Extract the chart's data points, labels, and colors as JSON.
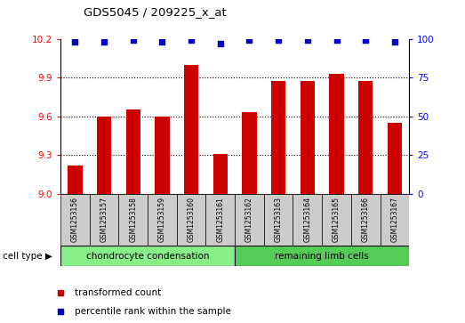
{
  "title": "GDS5045 / 209225_x_at",
  "samples": [
    "GSM1253156",
    "GSM1253157",
    "GSM1253158",
    "GSM1253159",
    "GSM1253160",
    "GSM1253161",
    "GSM1253162",
    "GSM1253163",
    "GSM1253164",
    "GSM1253165",
    "GSM1253166",
    "GSM1253167"
  ],
  "transformed_count": [
    9.22,
    9.6,
    9.65,
    9.6,
    10.0,
    9.31,
    9.63,
    9.87,
    9.87,
    9.93,
    9.87,
    9.55
  ],
  "percentile_rank": [
    98,
    98,
    99,
    98,
    99,
    97,
    99,
    99,
    99,
    99,
    99,
    98
  ],
  "group1_label": "chondrocyte condensation",
  "group2_label": "remaining limb cells",
  "group1_count": 6,
  "group2_count": 6,
  "ylim_left": [
    9.0,
    10.2
  ],
  "ylim_right": [
    0,
    100
  ],
  "yticks_left": [
    9.0,
    9.3,
    9.6,
    9.9,
    10.2
  ],
  "yticks_right": [
    0,
    25,
    50,
    75,
    100
  ],
  "bar_color": "#cc0000",
  "dot_color": "#0000cc",
  "bg_color": "#cccccc",
  "group1_bg": "#88ee88",
  "group2_bg": "#55cc55",
  "legend_bar_label": "transformed count",
  "legend_dot_label": "percentile rank within the sample",
  "cell_type_label": "cell type"
}
